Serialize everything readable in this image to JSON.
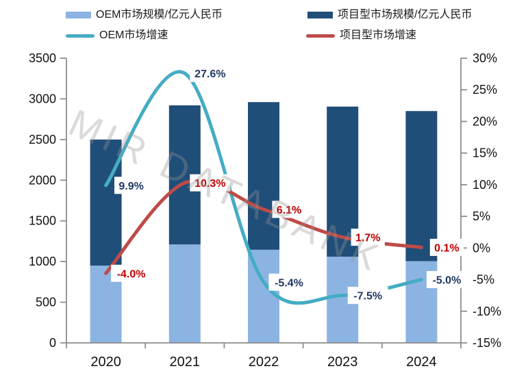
{
  "watermark": "MIR DATABANK",
  "chart_data": {
    "type": "combo-stacked-bar-line",
    "categories": [
      "2020",
      "2021",
      "2022",
      "2023",
      "2024"
    ],
    "bar_series": [
      {
        "name": "OEM市场规模/亿元人民币",
        "color": "#8CB4E2",
        "values": [
          950,
          1210,
          1145,
          1060,
          1005
        ]
      },
      {
        "name": "项目型市场规模/亿元人民币",
        "color": "#1F4E79",
        "values": [
          1550,
          1710,
          1815,
          1845,
          1845
        ]
      }
    ],
    "line_series": [
      {
        "name": "OEM市场增速",
        "color": "#45ACC4",
        "label_color": "#1F3864",
        "values": [
          9.9,
          27.6,
          -5.4,
          -7.5,
          -5.0
        ],
        "labels": [
          "9.9%",
          "27.6%",
          "-5.4%",
          "-7.5%",
          "-5.0%"
        ]
      },
      {
        "name": "项目型市场增速",
        "color": "#BE4B48",
        "label_color": "#C00000",
        "values": [
          -4.0,
          10.3,
          6.1,
          1.7,
          0.1
        ],
        "labels": [
          "-4.0%",
          "10.3%",
          "6.1%",
          "1.7%",
          "0.1%"
        ]
      }
    ],
    "left_axis": {
      "min": 0,
      "max": 3500,
      "step": 500,
      "tick_labels": [
        "3500",
        "3000",
        "2500",
        "2000",
        "1500",
        "1000",
        "500",
        "0"
      ]
    },
    "right_axis": {
      "min": -15,
      "max": 30,
      "step": 5,
      "tick_labels": [
        "30%",
        "25%",
        "20%",
        "15%",
        "10%",
        "5%",
        "0%",
        "-5%",
        "-10%",
        "-15%"
      ]
    },
    "grid": "off",
    "legend_position": "top",
    "stacked": true,
    "axis_color": "#8C8C8C"
  }
}
